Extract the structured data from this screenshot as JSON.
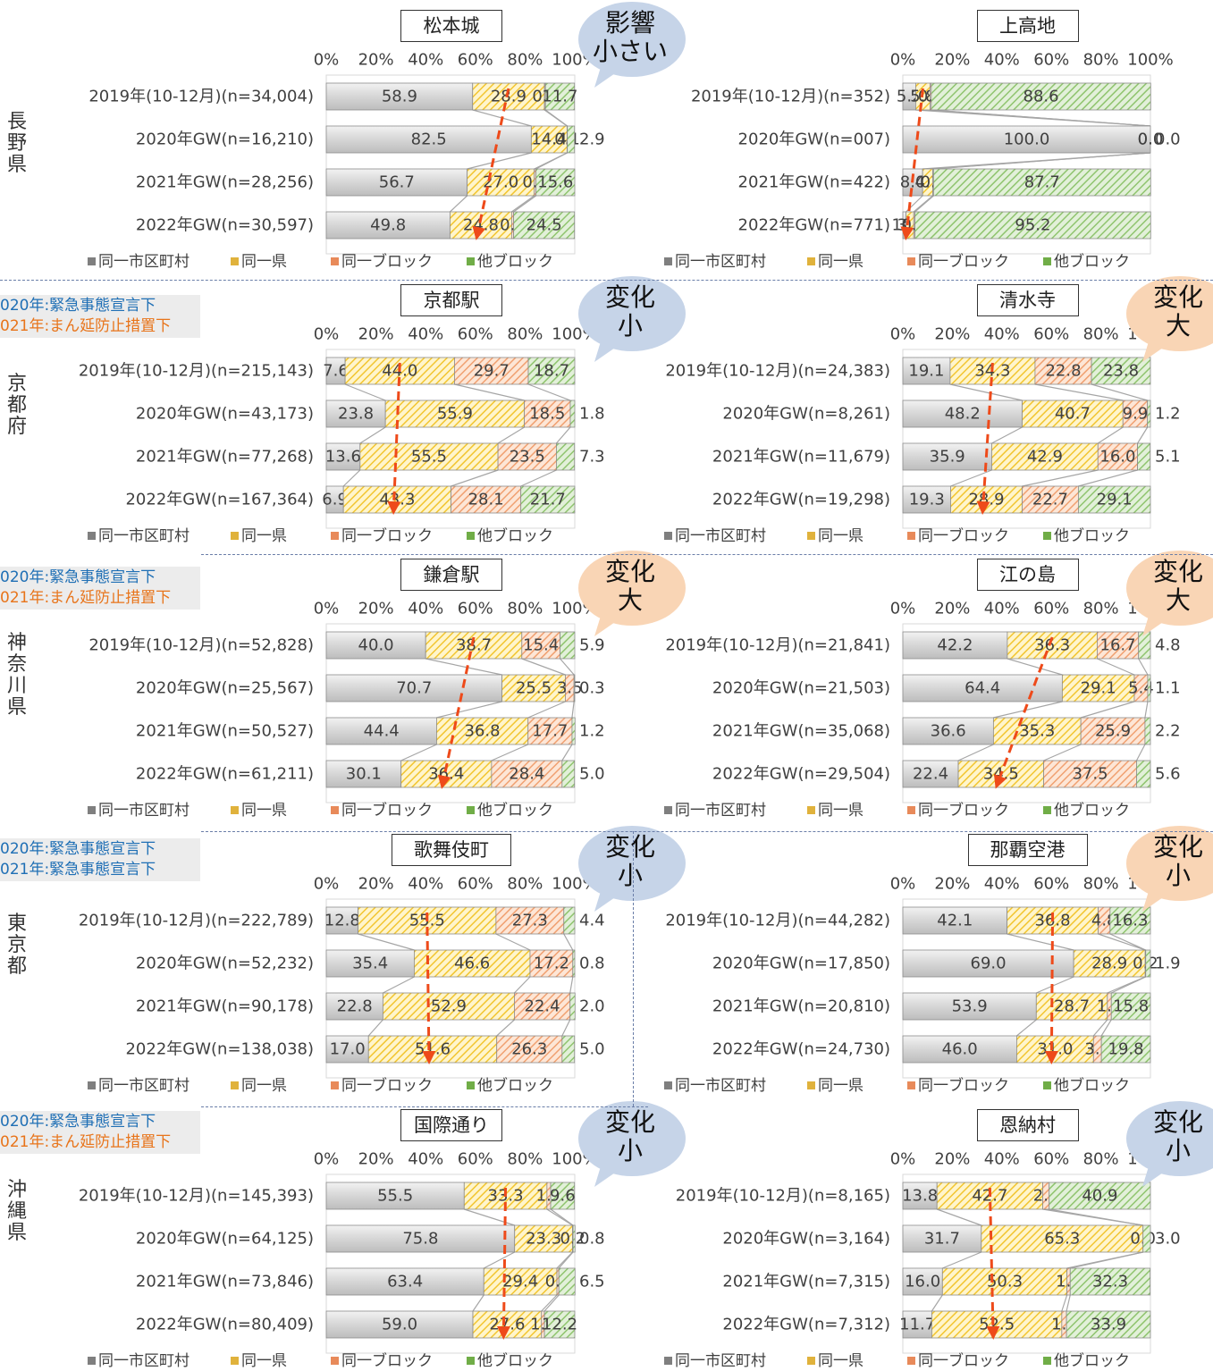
{
  "legend": [
    "同一市区町村",
    "同一県",
    "同一ブロック",
    "他ブロック"
  ],
  "colors": [
    "#d9d9d9",
    "#ffd966",
    "#f4b183",
    "#a9d18e"
  ],
  "axis_ticks": [
    "0%",
    "20%",
    "40%",
    "60%",
    "80%",
    "100%"
  ],
  "prefectures": [
    {
      "name": "長野県",
      "chars": [
        "長",
        "野",
        "県"
      ]
    },
    {
      "name": "京都府",
      "chars": [
        "京",
        "都",
        "府"
      ]
    },
    {
      "name": "神奈川県",
      "chars": [
        "神",
        "奈",
        "川",
        "県"
      ]
    },
    {
      "name": "東京都",
      "chars": [
        "東",
        "京",
        "都"
      ]
    },
    {
      "name": "沖縄県",
      "chars": [
        "沖",
        "縄",
        "県"
      ]
    }
  ],
  "notes": [
    {
      "line1": "020年:緊急事態宣言下",
      "line2": "021年:まん延防止措置下",
      "emergency2": false
    },
    {
      "line1": "020年:緊急事態宣言下",
      "line2": "021年:まん延防止措置下",
      "emergency2": false
    },
    {
      "line1": "020年:緊急事態宣言下",
      "line2": "021年:緊急事態宣言下",
      "emergency2": true
    },
    {
      "line1": "020年:緊急事態宣言下",
      "line2": "021年:まん延防止措置下",
      "emergency2": false
    }
  ],
  "chart_data": [
    {
      "type": "bar",
      "stacked": true,
      "orientation": "horizontal",
      "title": "松本城",
      "badge": [
        "影響",
        "小さい"
      ],
      "badge_color": "blue",
      "categories": [
        "2019年(10-12月)(n=34,004)",
        "2020年GW(n=16,210)",
        "2021年GW(n=28,256)",
        "2022年GW(n=30,597)"
      ],
      "series": [
        {
          "name": "同一市区町村",
          "values": [
            58.9,
            82.5,
            56.7,
            49.8
          ]
        },
        {
          "name": "同一県",
          "values": [
            28.9,
            14.4,
            27.0,
            24.8
          ]
        },
        {
          "name": "同一ブロック",
          "values": [
            0.4,
            0.1,
            0.7,
            0.8
          ]
        },
        {
          "name": "他ブロック",
          "values": [
            11.7,
            2.9,
            15.6,
            24.5
          ]
        }
      ],
      "xlim": [
        0,
        100
      ]
    },
    {
      "type": "bar",
      "stacked": true,
      "orientation": "horizontal",
      "title": "上高地",
      "badge": null,
      "badge_color": null,
      "categories": [
        "2019年(10-12月)(n=352)",
        "2020年GW(n=007)",
        "2021年GW(n=422)",
        "2022年GW(n=771)"
      ],
      "series": [
        {
          "name": "同一市区町村",
          "values": [
            5.2,
            100.0,
            8.0,
            1.3
          ]
        },
        {
          "name": "同一県",
          "values": [
            5.8,
            0.0,
            4.1,
            3.1
          ]
        },
        {
          "name": "同一ブロック",
          "values": [
            0.5,
            0.0,
            0.3,
            0.5
          ]
        },
        {
          "name": "他ブロック",
          "values": [
            88.6,
            0.0,
            87.7,
            95.2
          ]
        }
      ],
      "xlim": [
        0,
        100
      ]
    },
    {
      "type": "bar",
      "stacked": true,
      "orientation": "horizontal",
      "title": "京都駅",
      "badge": [
        "変化",
        "小"
      ],
      "badge_color": "blue",
      "categories": [
        "2019年(10-12月)(n=215,143)",
        "2020年GW(n=43,173)",
        "2021年GW(n=77,268)",
        "2022年GW(n=167,364)"
      ],
      "series": [
        {
          "name": "同一市区町村",
          "values": [
            7.6,
            23.8,
            13.6,
            6.9
          ]
        },
        {
          "name": "同一県",
          "values": [
            44.0,
            55.9,
            55.5,
            43.3
          ]
        },
        {
          "name": "同一ブロック",
          "values": [
            29.7,
            18.5,
            23.5,
            28.1
          ]
        },
        {
          "name": "他ブロック",
          "values": [
            18.7,
            1.8,
            7.3,
            21.7
          ]
        }
      ],
      "xlim": [
        0,
        100
      ]
    },
    {
      "type": "bar",
      "stacked": true,
      "orientation": "horizontal",
      "title": "清水寺",
      "badge": [
        "変化",
        "大"
      ],
      "badge_color": "orange",
      "categories": [
        "2019年(10-12月)(n=24,383)",
        "2020年GW(n=8,261)",
        "2021年GW(n=11,679)",
        "2022年GW(n=19,298)"
      ],
      "series": [
        {
          "name": "同一市区町村",
          "values": [
            19.1,
            48.2,
            35.9,
            19.3
          ]
        },
        {
          "name": "同一県",
          "values": [
            34.3,
            40.7,
            42.9,
            28.9
          ]
        },
        {
          "name": "同一ブロック",
          "values": [
            22.8,
            9.9,
            16.0,
            22.7
          ]
        },
        {
          "name": "他ブロック",
          "values": [
            23.8,
            1.2,
            5.1,
            29.1
          ]
        }
      ],
      "xlim": [
        0,
        100
      ]
    },
    {
      "type": "bar",
      "stacked": true,
      "orientation": "horizontal",
      "title": "鎌倉駅",
      "badge": [
        "変化",
        "大"
      ],
      "badge_color": "orange",
      "categories": [
        "2019年(10-12月)(n=52,828)",
        "2020年GW(n=25,567)",
        "2021年GW(n=50,527)",
        "2022年GW(n=61,211)"
      ],
      "series": [
        {
          "name": "同一市区町村",
          "values": [
            40.0,
            70.7,
            44.4,
            30.1
          ]
        },
        {
          "name": "同一県",
          "values": [
            38.7,
            25.5,
            36.8,
            36.4
          ]
        },
        {
          "name": "同一ブロック",
          "values": [
            15.4,
            3.5,
            17.7,
            28.4
          ]
        },
        {
          "name": "他ブロック",
          "values": [
            5.9,
            0.3,
            1.2,
            5.0
          ]
        }
      ],
      "xlim": [
        0,
        100
      ]
    },
    {
      "type": "bar",
      "stacked": true,
      "orientation": "horizontal",
      "title": "江の島",
      "badge": [
        "変化",
        "大"
      ],
      "badge_color": "orange",
      "categories": [
        "2019年(10-12月)(n=21,841)",
        "2020年GW(n=21,503)",
        "2021年GW(n=35,068)",
        "2022年GW(n=29,504)"
      ],
      "series": [
        {
          "name": "同一市区町村",
          "values": [
            42.2,
            64.4,
            36.6,
            22.4
          ]
        },
        {
          "name": "同一県",
          "values": [
            36.3,
            29.1,
            35.3,
            34.5
          ]
        },
        {
          "name": "同一ブロック",
          "values": [
            16.7,
            5.4,
            25.9,
            37.5
          ]
        },
        {
          "name": "他ブロック",
          "values": [
            4.8,
            1.1,
            2.2,
            5.6
          ]
        }
      ],
      "xlim": [
        0,
        100
      ]
    },
    {
      "type": "bar",
      "stacked": true,
      "orientation": "horizontal",
      "title": "歌舞伎町",
      "badge": [
        "変化",
        "小"
      ],
      "badge_color": "blue",
      "categories": [
        "2019年(10-12月)(n=222,789)",
        "2020年GW(n=52,232)",
        "2021年GW(n=90,178)",
        "2022年GW(n=138,038)"
      ],
      "series": [
        {
          "name": "同一市区町村",
          "values": [
            12.8,
            35.4,
            22.8,
            17.0
          ]
        },
        {
          "name": "同一県",
          "values": [
            55.5,
            46.6,
            52.9,
            51.6
          ]
        },
        {
          "name": "同一ブロック",
          "values": [
            27.3,
            17.2,
            22.4,
            26.3
          ]
        },
        {
          "name": "他ブロック",
          "values": [
            4.4,
            0.8,
            2.0,
            5.0
          ]
        }
      ],
      "xlim": [
        0,
        100
      ]
    },
    {
      "type": "bar",
      "stacked": true,
      "orientation": "horizontal",
      "title": "那覇空港",
      "badge": [
        "変化",
        "小"
      ],
      "badge_color": "orange",
      "categories": [
        "2019年(10-12月)(n=44,282)",
        "2020年GW(n=17,850)",
        "2021年GW(n=20,810)",
        "2022年GW(n=24,730)"
      ],
      "series": [
        {
          "name": "同一市区町村",
          "values": [
            42.1,
            69.0,
            53.9,
            46.0
          ]
        },
        {
          "name": "同一県",
          "values": [
            36.8,
            28.9,
            28.7,
            31.0
          ]
        },
        {
          "name": "同一ブロック",
          "values": [
            4.8,
            0.2,
            1.6,
            3.2
          ]
        },
        {
          "name": "他ブロック",
          "values": [
            16.3,
            1.9,
            15.8,
            19.8
          ]
        }
      ],
      "xlim": [
        0,
        100
      ]
    },
    {
      "type": "bar",
      "stacked": true,
      "orientation": "horizontal",
      "title": "国際通り",
      "badge": [
        "変化",
        "小"
      ],
      "badge_color": "blue",
      "categories": [
        "2019年(10-12月)(n=145,393)",
        "2020年GW(n=64,125)",
        "2021年GW(n=73,846)",
        "2022年GW(n=80,409)"
      ],
      "series": [
        {
          "name": "同一市区町村",
          "values": [
            55.5,
            75.8,
            63.4,
            59.0
          ]
        },
        {
          "name": "同一県",
          "values": [
            33.3,
            23.3,
            29.4,
            27.6
          ]
        },
        {
          "name": "同一ブロック",
          "values": [
            1.5,
            0.2,
            0.8,
            1.2
          ]
        },
        {
          "name": "他ブロック",
          "values": [
            9.6,
            0.8,
            6.5,
            12.2
          ]
        }
      ],
      "xlim": [
        0,
        100
      ]
    },
    {
      "type": "bar",
      "stacked": true,
      "orientation": "horizontal",
      "title": "恩納村",
      "badge": [
        "変化",
        "小"
      ],
      "badge_color": "blue",
      "categories": [
        "2019年(10-12月)(n=8,165)",
        "2020年GW(n=3,164)",
        "2021年GW(n=7,315)",
        "2022年GW(n=7,312)"
      ],
      "series": [
        {
          "name": "同一市区町村",
          "values": [
            13.8,
            31.7,
            16.0,
            11.7
          ]
        },
        {
          "name": "同一県",
          "values": [
            42.7,
            65.3,
            50.3,
            52.5
          ]
        },
        {
          "name": "同一ブロック",
          "values": [
            2.6,
            0.0,
            1.3,
            1.9
          ]
        },
        {
          "name": "他ブロック",
          "values": [
            40.9,
            3.0,
            32.3,
            33.9
          ]
        }
      ],
      "xlim": [
        0,
        100
      ]
    }
  ]
}
